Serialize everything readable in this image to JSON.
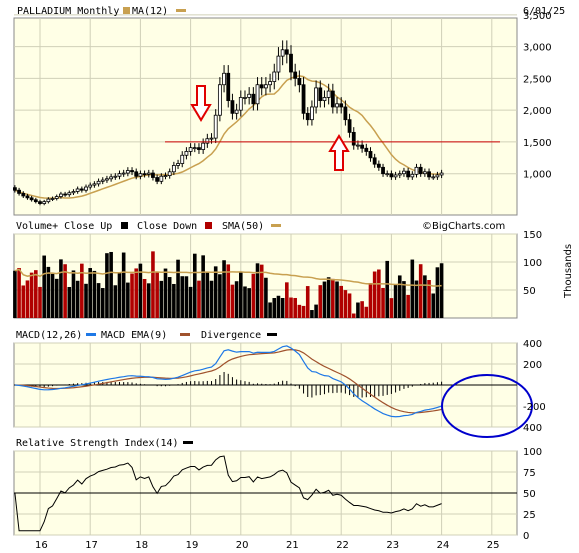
{
  "header": {
    "title": "PALLADIUM Monthly",
    "ma_legend": "MA(12)",
    "date": "6/01/25"
  },
  "watermark": "©BigCharts.com",
  "colors": {
    "panel_bg": "#ffffe6",
    "up": "#000000",
    "down": "#b00000",
    "ma": "#c8a050",
    "support_line": "#cc0000",
    "arrow": "#e00000",
    "macd": "#1e78e6",
    "macd_ema": "#a0522d",
    "circle": "#0000cc"
  },
  "chart_data": [
    {
      "type": "candlestick",
      "title": "PALLADIUM Monthly",
      "series_ma": "MA(12)",
      "ylim": [
        350,
        3450
      ],
      "y_ticks": [
        "1,000",
        "1,500",
        "2,000",
        "2,500",
        "3,000",
        "3,500"
      ],
      "x_ticks": [
        "16",
        "17",
        "18",
        "19",
        "20",
        "21",
        "22",
        "23",
        "24",
        "25"
      ],
      "close": [
        740,
        690,
        650,
        620,
        590,
        560,
        530,
        560,
        600,
        610,
        640,
        680,
        670,
        700,
        720,
        760,
        740,
        790,
        820,
        840,
        880,
        900,
        920,
        950,
        960,
        1000,
        1010,
        1050,
        1030,
        960,
        1000,
        990,
        1010,
        940,
        880,
        960,
        970,
        1030,
        1130,
        1160,
        1290,
        1350,
        1410,
        1410,
        1380,
        1480,
        1550,
        1560,
        1920,
        2400,
        2580,
        2150,
        1950,
        2000,
        2200,
        2200,
        2250,
        2100,
        2400,
        2350,
        2400,
        2450,
        2600,
        2850,
        2950,
        2880,
        2600,
        2500,
        2400,
        1950,
        1850,
        2050,
        2350,
        2150,
        2200,
        2300,
        2050,
        2100,
        2050,
        1850,
        1650,
        1450,
        1450,
        1400,
        1350,
        1250,
        1150,
        1100,
        1000,
        1000,
        950,
        980,
        1000,
        1040,
        950,
        990,
        1100,
        1000,
        1030,
        950,
        950,
        980,
        1010
      ],
      "annotations": [
        {
          "type": "hline",
          "y": 1500,
          "label": ""
        },
        {
          "type": "arrow_down",
          "label": ""
        },
        {
          "type": "arrow_up",
          "label": ""
        }
      ]
    },
    {
      "type": "bar",
      "title": "Volume+ Close Up",
      "legend": [
        "Volume+ Close Up",
        "Close Down",
        "SMA(50)"
      ],
      "ylabel": "Thousands",
      "ylim": [
        0,
        150
      ],
      "y_ticks": [
        "50",
        "100",
        "150"
      ]
    },
    {
      "type": "line",
      "title": "MACD(12,26)",
      "legend": [
        "MACD(12,26)",
        "MACD EMA(9)",
        "Divergence"
      ],
      "ylim": [
        -400,
        400
      ],
      "y_ticks": [
        "400",
        "200",
        "-200",
        "400"
      ]
    },
    {
      "type": "line",
      "title": "Relative Strength Index(14)",
      "ylim": [
        0,
        100
      ],
      "y_ticks": [
        "100",
        "75",
        "50",
        "25",
        "0"
      ]
    }
  ],
  "labels": {
    "vol_legend_up": "Volume+ Close Up",
    "vol_legend_down": "Close Down",
    "vol_legend_sma": "SMA(50)",
    "vol_unit": "Thousands",
    "macd_legend": "MACD(12,26)",
    "macd_ema_legend": "MACD EMA(9)",
    "div_legend": "Divergence",
    "rsi_legend": "Relative Strength Index(14)"
  }
}
